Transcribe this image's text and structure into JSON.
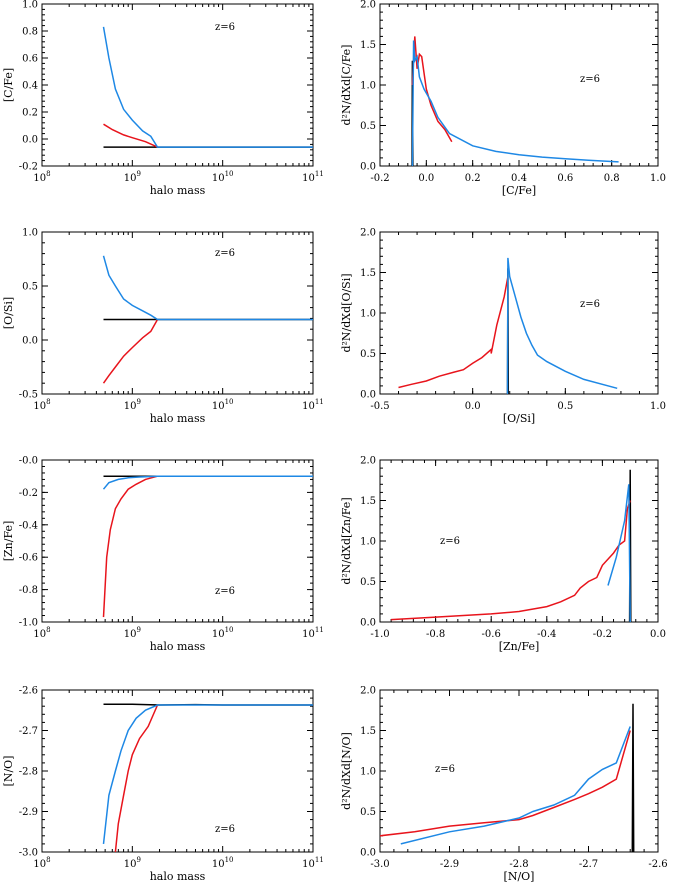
{
  "colors": {
    "black": "#000000",
    "red": "#e8141c",
    "blue": "#1e88e5"
  },
  "chart_data": [
    {
      "type": "line",
      "xscale": "log",
      "xlim": [
        100000000.0,
        100000000000.0
      ],
      "ylim": [
        -0.2,
        1.0
      ],
      "xlabel": "halo mass",
      "ylabel": "[C/Fe]",
      "annotation": "z=6",
      "x_ticks": [
        {
          "v": 100000000.0,
          "b": "10",
          "e": "8"
        },
        {
          "v": 1000000000.0,
          "b": "10",
          "e": "9"
        },
        {
          "v": 10000000000.0,
          "b": "10",
          "e": "10"
        },
        {
          "v": 100000000000.0,
          "b": "10",
          "e": "11"
        }
      ],
      "y_ticks": [
        {
          "v": -0.2,
          "t": "-0.2"
        },
        {
          "v": 0.0,
          "t": "0.0"
        },
        {
          "v": 0.2,
          "t": "0.2"
        },
        {
          "v": 0.4,
          "t": "0.4"
        },
        {
          "v": 0.6,
          "t": "0.6"
        },
        {
          "v": 0.8,
          "t": "0.8"
        },
        {
          "v": 1.0,
          "t": "1.0"
        }
      ],
      "series": [
        {
          "color": "black",
          "x": [
            480000000.0,
            1000000000.0,
            2000000000.0,
            5000000000.0,
            10000000000.0,
            100000000000.0
          ],
          "y": [
            -0.06,
            -0.06,
            -0.06,
            -0.06,
            -0.06,
            -0.06
          ]
        },
        {
          "color": "red",
          "x": [
            480000000.0,
            600000000.0,
            800000000.0,
            1000000000.0,
            1400000000.0,
            1900000000.0
          ],
          "y": [
            0.11,
            0.07,
            0.03,
            0.01,
            -0.02,
            -0.06
          ]
        },
        {
          "color": "blue",
          "x": [
            480000000.0,
            550000000.0,
            650000000.0,
            800000000.0,
            1000000000.0,
            1300000000.0,
            1600000000.0,
            1900000000.0,
            3000000000.0,
            10000000000.0,
            100000000000.0
          ],
          "y": [
            0.83,
            0.6,
            0.37,
            0.22,
            0.14,
            0.06,
            0.02,
            -0.06,
            -0.06,
            -0.06,
            -0.06
          ]
        }
      ]
    },
    {
      "type": "line",
      "xlim": [
        -0.2,
        1.0
      ],
      "ylim": [
        0,
        2.0
      ],
      "xlabel": "[C/Fe]",
      "ylabel": "d²N/dXd[C/Fe]",
      "annotation": "z=6",
      "x_ticks": [
        {
          "v": -0.2,
          "t": "-0.2"
        },
        {
          "v": 0.0,
          "t": "0.0"
        },
        {
          "v": 0.2,
          "t": "0.2"
        },
        {
          "v": 0.4,
          "t": "0.4"
        },
        {
          "v": 0.6,
          "t": "0.6"
        },
        {
          "v": 0.8,
          "t": "0.8"
        },
        {
          "v": 1.0,
          "t": "1.0"
        }
      ],
      "y_ticks": [
        {
          "v": 0,
          "t": "0.0"
        },
        {
          "v": 0.5,
          "t": "0.5"
        },
        {
          "v": 1.0,
          "t": "1.0"
        },
        {
          "v": 1.5,
          "t": "1.5"
        },
        {
          "v": 2.0,
          "t": "2.0"
        }
      ],
      "series": [
        {
          "color": "black",
          "x": [
            -0.062,
            -0.06,
            -0.058
          ],
          "y": [
            0,
            1.3,
            0
          ]
        },
        {
          "color": "red",
          "x": [
            -0.06,
            -0.05,
            -0.04,
            -0.03,
            -0.02,
            0.0,
            0.02,
            0.05,
            0.08,
            0.11
          ],
          "y": [
            1.0,
            1.6,
            1.2,
            1.38,
            1.35,
            0.95,
            0.75,
            0.55,
            0.45,
            0.3
          ]
        },
        {
          "color": "blue",
          "x": [
            -0.06,
            -0.055,
            -0.05,
            -0.04,
            -0.03,
            -0.01,
            0.02,
            0.05,
            0.1,
            0.2,
            0.3,
            0.4,
            0.5,
            0.6,
            0.7,
            0.83
          ],
          "y": [
            0,
            1.55,
            1.3,
            1.35,
            1.1,
            0.95,
            0.8,
            0.6,
            0.4,
            0.25,
            0.18,
            0.14,
            0.11,
            0.09,
            0.07,
            0.05
          ]
        }
      ]
    },
    {
      "type": "line",
      "xscale": "log",
      "xlim": [
        100000000.0,
        100000000000.0
      ],
      "ylim": [
        -0.5,
        1.0
      ],
      "xlabel": "halo mass",
      "ylabel": "[O/Si]",
      "annotation": "z=6",
      "x_ticks": [
        {
          "v": 100000000.0,
          "b": "10",
          "e": "8"
        },
        {
          "v": 1000000000.0,
          "b": "10",
          "e": "9"
        },
        {
          "v": 10000000000.0,
          "b": "10",
          "e": "10"
        },
        {
          "v": 100000000000.0,
          "b": "10",
          "e": "11"
        }
      ],
      "y_ticks": [
        {
          "v": -0.5,
          "t": "-0.5"
        },
        {
          "v": 0.0,
          "t": "0.0"
        },
        {
          "v": 0.5,
          "t": "0.5"
        },
        {
          "v": 1.0,
          "t": "1.0"
        }
      ],
      "series": [
        {
          "color": "black",
          "x": [
            480000000.0,
            1000000000.0,
            2000000000.0,
            5000000000.0,
            10000000000.0,
            100000000000.0
          ],
          "y": [
            0.19,
            0.19,
            0.19,
            0.19,
            0.19,
            0.19
          ]
        },
        {
          "color": "red",
          "x": [
            480000000.0,
            550000000.0,
            650000000.0,
            800000000.0,
            1000000000.0,
            1300000000.0,
            1600000000.0,
            1900000000.0
          ],
          "y": [
            -0.4,
            -0.33,
            -0.25,
            -0.15,
            -0.07,
            0.02,
            0.08,
            0.19
          ]
        },
        {
          "color": "blue",
          "x": [
            480000000.0,
            550000000.0,
            650000000.0,
            800000000.0,
            1000000000.0,
            1300000000.0,
            1600000000.0,
            1900000000.0,
            3000000000.0,
            10000000000.0,
            100000000000.0
          ],
          "y": [
            0.78,
            0.6,
            0.5,
            0.38,
            0.32,
            0.27,
            0.23,
            0.19,
            0.19,
            0.19,
            0.19
          ]
        }
      ]
    },
    {
      "type": "line",
      "xlim": [
        -0.5,
        1.0
      ],
      "ylim": [
        0,
        2.0
      ],
      "xlabel": "[O/Si]",
      "ylabel": "d²N/dXd[O/Si]",
      "annotation": "z=6",
      "x_ticks": [
        {
          "v": -0.5,
          "t": "-0.5"
        },
        {
          "v": 0.0,
          "t": "0.0"
        },
        {
          "v": 0.5,
          "t": "0.5"
        },
        {
          "v": 1.0,
          "t": "1.0"
        }
      ],
      "y_ticks": [
        {
          "v": 0,
          "t": "0.0"
        },
        {
          "v": 0.5,
          "t": "0.5"
        },
        {
          "v": 1.0,
          "t": "1.0"
        },
        {
          "v": 1.5,
          "t": "1.5"
        },
        {
          "v": 2.0,
          "t": "2.0"
        }
      ],
      "series": [
        {
          "color": "black",
          "x": [
            0.188,
            0.19,
            0.192
          ],
          "y": [
            0,
            1.55,
            0
          ]
        },
        {
          "color": "red",
          "x": [
            -0.4,
            -0.33,
            -0.25,
            -0.18,
            -0.1,
            -0.05,
            0.0,
            0.05,
            0.1,
            0.1,
            0.13,
            0.17,
            0.19
          ],
          "y": [
            0.08,
            0.12,
            0.16,
            0.22,
            0.27,
            0.3,
            0.38,
            0.45,
            0.55,
            0.5,
            0.85,
            1.2,
            1.45
          ]
        },
        {
          "color": "blue",
          "x": [
            0.188,
            0.19,
            0.2,
            0.23,
            0.26,
            0.29,
            0.32,
            0.35,
            0.4,
            0.5,
            0.6,
            0.78
          ],
          "y": [
            0,
            1.68,
            1.45,
            1.2,
            0.95,
            0.75,
            0.6,
            0.48,
            0.4,
            0.28,
            0.18,
            0.07
          ]
        }
      ]
    },
    {
      "type": "line",
      "xscale": "log",
      "xlim": [
        100000000.0,
        100000000000.0
      ],
      "ylim": [
        -1.0,
        0.0
      ],
      "xlabel": "halo mass",
      "ylabel": "[Zn/Fe]",
      "annotation": "z=6",
      "x_ticks": [
        {
          "v": 100000000.0,
          "b": "10",
          "e": "8"
        },
        {
          "v": 1000000000.0,
          "b": "10",
          "e": "9"
        },
        {
          "v": 10000000000.0,
          "b": "10",
          "e": "10"
        },
        {
          "v": 100000000000.0,
          "b": "10",
          "e": "11"
        }
      ],
      "y_ticks": [
        {
          "v": -1.0,
          "t": "-1.0"
        },
        {
          "v": -0.8,
          "t": "-0.8"
        },
        {
          "v": -0.6,
          "t": "-0.6"
        },
        {
          "v": -0.4,
          "t": "-0.4"
        },
        {
          "v": -0.2,
          "t": "-0.2"
        },
        {
          "v": 0.0,
          "t": "-0.0"
        }
      ],
      "series": [
        {
          "color": "black",
          "x": [
            480000000.0,
            1000000000.0,
            2000000000.0,
            5000000000.0,
            10000000000.0,
            100000000000.0
          ],
          "y": [
            -0.1,
            -0.1,
            -0.1,
            -0.1,
            -0.1,
            -0.1
          ]
        },
        {
          "color": "red",
          "x": [
            480000000.0,
            520000000.0,
            570000000.0,
            650000000.0,
            750000000.0,
            900000000.0,
            1100000000.0,
            1400000000.0,
            1900000000.0
          ],
          "y": [
            -0.97,
            -0.6,
            -0.43,
            -0.3,
            -0.24,
            -0.18,
            -0.15,
            -0.12,
            -0.1
          ]
        },
        {
          "color": "blue",
          "x": [
            480000000.0,
            550000000.0,
            700000000.0,
            900000000.0,
            1200000000.0,
            1900000000.0,
            3000000000.0,
            10000000000.0,
            100000000000.0
          ],
          "y": [
            -0.18,
            -0.14,
            -0.12,
            -0.11,
            -0.105,
            -0.1,
            -0.1,
            -0.1,
            -0.1
          ]
        }
      ]
    },
    {
      "type": "line",
      "xlim": [
        -1.0,
        0.0
      ],
      "ylim": [
        0,
        2.0
      ],
      "xlabel": "[Zn/Fe]",
      "ylabel": "d²N/dXd[Zn/Fe]",
      "annotation": "z=6",
      "x_ticks": [
        {
          "v": -1.0,
          "t": "-1.0"
        },
        {
          "v": -0.8,
          "t": "-0.8"
        },
        {
          "v": -0.6,
          "t": "-0.6"
        },
        {
          "v": -0.4,
          "t": "-0.4"
        },
        {
          "v": -0.2,
          "t": "-0.2"
        },
        {
          "v": 0.0,
          "t": "0.0"
        }
      ],
      "series": [
        {
          "color": "black",
          "x": [
            -0.102,
            -0.1,
            -0.098
          ],
          "y": [
            0,
            1.88,
            0
          ]
        },
        {
          "color": "red",
          "x": [
            -0.96,
            -0.8,
            -0.6,
            -0.5,
            -0.4,
            -0.35,
            -0.3,
            -0.28,
            -0.25,
            -0.22,
            -0.2,
            -0.16,
            -0.14,
            -0.12,
            -0.11,
            -0.1
          ],
          "y": [
            0.03,
            0.06,
            0.1,
            0.13,
            0.19,
            0.25,
            0.33,
            0.42,
            0.5,
            0.55,
            0.7,
            0.85,
            0.95,
            1.0,
            1.4,
            1.5
          ]
        },
        {
          "color": "blue",
          "x": [
            -0.18,
            -0.15,
            -0.12,
            -0.11,
            -0.105,
            -0.1
          ],
          "y": [
            0.45,
            0.8,
            1.25,
            1.55,
            1.7,
            0
          ]
        }
      ],
      "y_ticks": [
        {
          "v": 0,
          "t": "0.0"
        },
        {
          "v": 0.5,
          "t": "0.5"
        },
        {
          "v": 1.0,
          "t": "1.0"
        },
        {
          "v": 1.5,
          "t": "1.5"
        },
        {
          "v": 2.0,
          "t": "2.0"
        }
      ]
    },
    {
      "type": "line",
      "xscale": "log",
      "xlim": [
        100000000.0,
        100000000000.0
      ],
      "ylim": [
        -3.0,
        -2.6
      ],
      "xlabel": "halo mass",
      "ylabel": "[N/O]",
      "annotation": "z=6",
      "x_ticks": [
        {
          "v": 100000000.0,
          "b": "10",
          "e": "8"
        },
        {
          "v": 1000000000.0,
          "b": "10",
          "e": "9"
        },
        {
          "v": 10000000000.0,
          "b": "10",
          "e": "10"
        },
        {
          "v": 100000000000.0,
          "b": "10",
          "e": "11"
        }
      ],
      "y_ticks": [
        {
          "v": -3.0,
          "t": "-3.0"
        },
        {
          "v": -2.9,
          "t": "-2.9"
        },
        {
          "v": -2.8,
          "t": "-2.8"
        },
        {
          "v": -2.7,
          "t": "-2.7"
        },
        {
          "v": -2.6,
          "t": "-2.6"
        }
      ],
      "series": [
        {
          "color": "black",
          "x": [
            480000000.0,
            1000000000.0,
            2000000000.0,
            5000000000.0,
            10000000000.0,
            100000000000.0
          ],
          "y": [
            -2.635,
            -2.635,
            -2.637,
            -2.636,
            -2.637,
            -2.637
          ]
        },
        {
          "color": "red",
          "x": [
            650000000.0,
            700000000.0,
            800000000.0,
            900000000.0,
            1000000000.0,
            1200000000.0,
            1500000000.0,
            1900000000.0
          ],
          "y": [
            -3.0,
            -2.93,
            -2.86,
            -2.8,
            -2.76,
            -2.72,
            -2.69,
            -2.637
          ]
        },
        {
          "color": "blue",
          "x": [
            480000000.0,
            550000000.0,
            650000000.0,
            750000000.0,
            900000000.0,
            1100000000.0,
            1400000000.0,
            1900000000.0,
            3000000000.0,
            10000000000.0,
            100000000000.0
          ],
          "y": [
            -2.98,
            -2.86,
            -2.8,
            -2.75,
            -2.7,
            -2.67,
            -2.65,
            -2.637,
            -2.637,
            -2.637,
            -2.637
          ]
        }
      ]
    },
    {
      "type": "line",
      "xlim": [
        -3.0,
        -2.6
      ],
      "ylim": [
        0,
        2.0
      ],
      "xlabel": "[N/O]",
      "ylabel": "d²N/dXd[N/O]",
      "annotation": "z=6",
      "x_ticks": [
        {
          "v": -3.0,
          "t": "-3.0"
        },
        {
          "v": -2.9,
          "t": "-2.9"
        },
        {
          "v": -2.8,
          "t": "-2.8"
        },
        {
          "v": -2.7,
          "t": "-2.7"
        },
        {
          "v": -2.6,
          "t": "-2.6"
        }
      ],
      "y_ticks": [
        {
          "v": 0,
          "t": "0.0"
        },
        {
          "v": 0.5,
          "t": "0.5"
        },
        {
          "v": 1.0,
          "t": "1.0"
        },
        {
          "v": 1.5,
          "t": "1.5"
        },
        {
          "v": 2.0,
          "t": "2.0"
        }
      ],
      "series": [
        {
          "color": "black",
          "x": [
            -2.637,
            -2.636,
            -2.635
          ],
          "y": [
            0,
            1.83,
            0
          ]
        },
        {
          "color": "red",
          "x": [
            -3.0,
            -2.95,
            -2.9,
            -2.85,
            -2.8,
            -2.78,
            -2.75,
            -2.72,
            -2.7,
            -2.68,
            -2.66,
            -2.64
          ],
          "y": [
            0.2,
            0.25,
            0.32,
            0.36,
            0.4,
            0.45,
            0.55,
            0.65,
            0.72,
            0.8,
            0.9,
            1.5
          ]
        },
        {
          "color": "blue",
          "x": [
            -2.97,
            -2.9,
            -2.85,
            -2.8,
            -2.78,
            -2.75,
            -2.72,
            -2.7,
            -2.68,
            -2.66,
            -2.64
          ],
          "y": [
            0.1,
            0.25,
            0.32,
            0.42,
            0.5,
            0.58,
            0.7,
            0.9,
            1.02,
            1.1,
            1.55
          ]
        }
      ]
    }
  ]
}
